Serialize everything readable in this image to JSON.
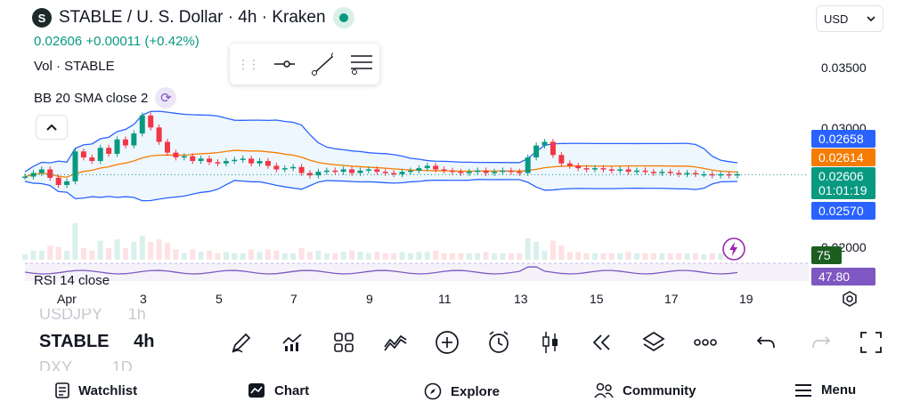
{
  "header": {
    "logo_glyph": "S",
    "title": "STABLE / U. S. Dollar · 4h · Kraken",
    "price_line": "0.02606 +0.00011 (+0.42%)"
  },
  "indicators": {
    "volume_label": "Vol · STABLE",
    "bb_label": "BB 20 SMA close 2",
    "rsi_label": "RSI 14 close"
  },
  "currency": {
    "value": "USD"
  },
  "y_axis": {
    "ticks": [
      "0.03500",
      "0.03000",
      "0.02000"
    ]
  },
  "price_tags": [
    {
      "value": "0.02658",
      "color": "#2962ff"
    },
    {
      "value": "0.02614",
      "color": "#f57c00"
    },
    {
      "value": "0.02606",
      "sub": "01:01:19",
      "color": "#089981"
    },
    {
      "value": "0.02570",
      "color": "#2962ff"
    },
    {
      "value": "75",
      "color": "#1b5e20"
    },
    {
      "value": "47.80",
      "color": "#7e57c2"
    }
  ],
  "x_axis": {
    "ticks": [
      "Apr",
      "3",
      "5",
      "7",
      "9",
      "11",
      "13",
      "15",
      "17",
      "19"
    ]
  },
  "symbol_scroller": {
    "prev": {
      "symbol": "USDJPY",
      "interval": "1h"
    },
    "current": {
      "symbol": "STABLE",
      "interval": "4h"
    },
    "next": {
      "symbol": "DXY",
      "interval": "1D"
    }
  },
  "toolbar_icons": [
    "pencil-icon",
    "indicators-icon",
    "templates-icon",
    "compare-icon",
    "add-icon",
    "alert-icon",
    "candles-icon",
    "replay-icon",
    "layers-icon",
    "more-icon",
    "undo-icon",
    "redo-icon",
    "fullscreen-icon"
  ],
  "bottom_nav": {
    "watchlist": "Watchlist",
    "chart": "Chart",
    "explore": "Explore",
    "community": "Community",
    "menu": "Menu"
  },
  "colors": {
    "up": "#089981",
    "down": "#f23645",
    "bb_band": "#2962ff",
    "bb_basis": "#f57c00",
    "rsi": "#7e57c2",
    "accent_purple": "#9c27b0"
  },
  "chart_data": {
    "type": "candlestick",
    "close": [
      0.0259,
      0.0262,
      0.0265,
      0.0258,
      0.0252,
      0.0255,
      0.028,
      0.0275,
      0.0272,
      0.0283,
      0.0278,
      0.029,
      0.0285,
      0.0295,
      0.031,
      0.03,
      0.0288,
      0.0279,
      0.0275,
      0.0276,
      0.0272,
      0.0274,
      0.0271,
      0.027,
      0.0272,
      0.0273,
      0.0274,
      0.027,
      0.0272,
      0.0268,
      0.0265,
      0.0266,
      0.0267,
      0.0262,
      0.026,
      0.0263,
      0.0264,
      0.0263,
      0.0265,
      0.0262,
      0.0264,
      0.0265,
      0.0263,
      0.0262,
      0.0261,
      0.0263,
      0.0264,
      0.0266,
      0.0268,
      0.0265,
      0.0264,
      0.0263,
      0.0262,
      0.0263,
      0.0264,
      0.0262,
      0.0263,
      0.0264,
      0.0263,
      0.0262,
      0.0275,
      0.0285,
      0.0288,
      0.0277,
      0.027,
      0.0268,
      0.0266,
      0.0265,
      0.0266,
      0.0265,
      0.0264,
      0.0265,
      0.0263,
      0.0264,
      0.0263,
      0.0262,
      0.0263,
      0.0262,
      0.0261,
      0.0262,
      0.0261,
      0.0261,
      0.026,
      0.0261,
      0.026,
      0.0261
    ]
  }
}
